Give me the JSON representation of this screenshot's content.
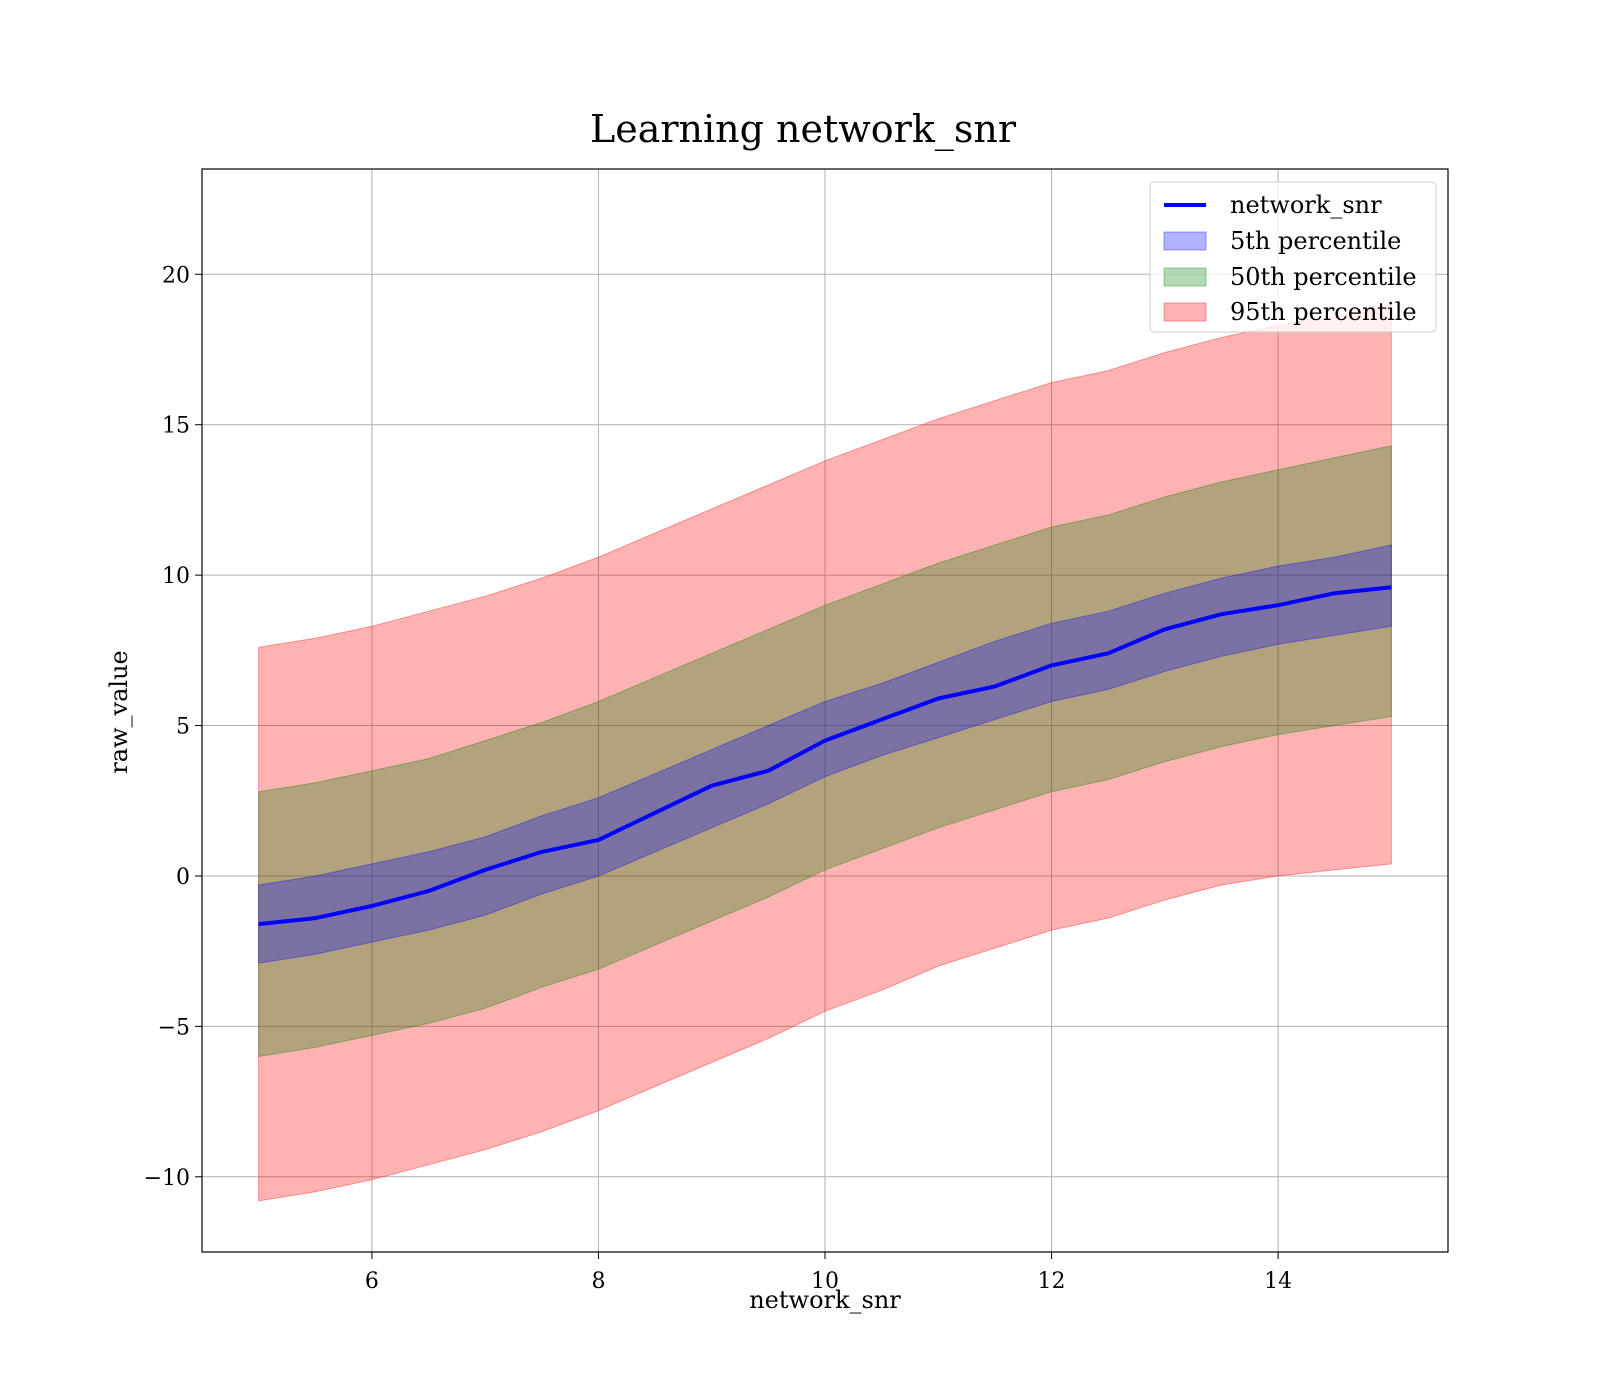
{
  "chart_data": {
    "type": "area",
    "title": "Learning network_snr",
    "xlabel": "network_snr",
    "ylabel": "raw_value",
    "xlim": [
      4.5,
      15.5
    ],
    "ylim": [
      -12.5,
      23.5
    ],
    "grid": true,
    "legend_position": "top-right",
    "x_ticks": [
      6,
      8,
      10,
      12,
      14
    ],
    "y_ticks": [
      -10,
      -5,
      0,
      5,
      10,
      15,
      20
    ],
    "y_tick_labels": [
      "−10",
      "−5",
      "0",
      "5",
      "10",
      "15",
      "20"
    ],
    "x": [
      5,
      5.5,
      6,
      6.5,
      7,
      7.5,
      8,
      8.5,
      9,
      9.5,
      10,
      10.5,
      11,
      11.5,
      12,
      12.5,
      13,
      13.5,
      14,
      14.5,
      15
    ],
    "series": [
      {
        "name": "network_snr",
        "kind": "line",
        "color": "#0000ff",
        "values": [
          -1.6,
          -1.4,
          -1.0,
          -0.5,
          0.2,
          0.8,
          1.2,
          2.1,
          3.0,
          3.5,
          4.5,
          5.2,
          5.9,
          6.3,
          7.0,
          7.4,
          8.2,
          8.7,
          9.0,
          9.4,
          9.6
        ]
      },
      {
        "name": "5th percentile",
        "kind": "band",
        "color": "#0000ff",
        "lower": [
          -2.9,
          -2.6,
          -2.2,
          -1.8,
          -1.3,
          -0.6,
          0.0,
          0.8,
          1.6,
          2.4,
          3.3,
          4.0,
          4.6,
          5.2,
          5.8,
          6.2,
          6.8,
          7.3,
          7.7,
          8.0,
          8.3
        ],
        "upper": [
          -0.3,
          0.0,
          0.4,
          0.8,
          1.3,
          2.0,
          2.6,
          3.4,
          4.2,
          5.0,
          5.8,
          6.4,
          7.1,
          7.8,
          8.4,
          8.8,
          9.4,
          9.9,
          10.3,
          10.6,
          11.0
        ]
      },
      {
        "name": "50th percentile",
        "kind": "band",
        "color": "#008000",
        "lower": [
          -6.0,
          -5.7,
          -5.3,
          -4.9,
          -4.4,
          -3.7,
          -3.1,
          -2.3,
          -1.5,
          -0.7,
          0.2,
          0.9,
          1.6,
          2.2,
          2.8,
          3.2,
          3.8,
          4.3,
          4.7,
          5.0,
          5.3
        ],
        "upper": [
          2.8,
          3.1,
          3.5,
          3.9,
          4.5,
          5.1,
          5.8,
          6.6,
          7.4,
          8.2,
          9.0,
          9.7,
          10.4,
          11.0,
          11.6,
          12.0,
          12.6,
          13.1,
          13.5,
          13.9,
          14.3
        ]
      },
      {
        "name": "95th percentile",
        "kind": "band",
        "color": "#ff0000",
        "lower": [
          -10.8,
          -10.5,
          -10.1,
          -9.6,
          -9.1,
          -8.5,
          -7.8,
          -7.0,
          -6.2,
          -5.4,
          -4.5,
          -3.8,
          -3.0,
          -2.4,
          -1.8,
          -1.4,
          -0.8,
          -0.3,
          0.0,
          0.2,
          0.4
        ],
        "upper": [
          7.6,
          7.9,
          8.3,
          8.8,
          9.3,
          9.9,
          10.6,
          11.4,
          12.2,
          13.0,
          13.8,
          14.5,
          15.2,
          15.8,
          16.4,
          16.8,
          17.4,
          17.9,
          18.3,
          18.6,
          19.0
        ]
      }
    ]
  }
}
